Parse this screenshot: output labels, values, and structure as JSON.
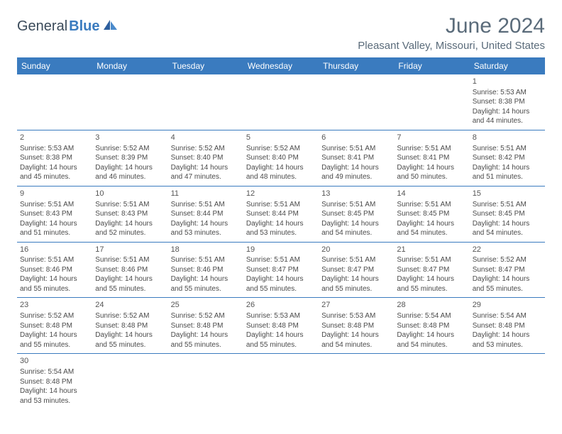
{
  "logo": {
    "part1": "General",
    "part2": "Blue"
  },
  "title": "June 2024",
  "location": "Pleasant Valley, Missouri, United States",
  "colors": {
    "header_bg": "#3a7bbf",
    "header_text": "#ffffff",
    "border": "#3a7bbf",
    "text_muted": "#5a6b7a",
    "cell_text": "#4a4a4a",
    "background": "#ffffff"
  },
  "day_headers": [
    "Sunday",
    "Monday",
    "Tuesday",
    "Wednesday",
    "Thursday",
    "Friday",
    "Saturday"
  ],
  "weeks": [
    [
      null,
      null,
      null,
      null,
      null,
      null,
      {
        "n": "1",
        "sr": "5:53 AM",
        "ss": "8:38 PM",
        "dh": "14",
        "dm": "44"
      }
    ],
    [
      {
        "n": "2",
        "sr": "5:53 AM",
        "ss": "8:38 PM",
        "dh": "14",
        "dm": "45"
      },
      {
        "n": "3",
        "sr": "5:52 AM",
        "ss": "8:39 PM",
        "dh": "14",
        "dm": "46"
      },
      {
        "n": "4",
        "sr": "5:52 AM",
        "ss": "8:40 PM",
        "dh": "14",
        "dm": "47"
      },
      {
        "n": "5",
        "sr": "5:52 AM",
        "ss": "8:40 PM",
        "dh": "14",
        "dm": "48"
      },
      {
        "n": "6",
        "sr": "5:51 AM",
        "ss": "8:41 PM",
        "dh": "14",
        "dm": "49"
      },
      {
        "n": "7",
        "sr": "5:51 AM",
        "ss": "8:41 PM",
        "dh": "14",
        "dm": "50"
      },
      {
        "n": "8",
        "sr": "5:51 AM",
        "ss": "8:42 PM",
        "dh": "14",
        "dm": "51"
      }
    ],
    [
      {
        "n": "9",
        "sr": "5:51 AM",
        "ss": "8:43 PM",
        "dh": "14",
        "dm": "51"
      },
      {
        "n": "10",
        "sr": "5:51 AM",
        "ss": "8:43 PM",
        "dh": "14",
        "dm": "52"
      },
      {
        "n": "11",
        "sr": "5:51 AM",
        "ss": "8:44 PM",
        "dh": "14",
        "dm": "53"
      },
      {
        "n": "12",
        "sr": "5:51 AM",
        "ss": "8:44 PM",
        "dh": "14",
        "dm": "53"
      },
      {
        "n": "13",
        "sr": "5:51 AM",
        "ss": "8:45 PM",
        "dh": "14",
        "dm": "54"
      },
      {
        "n": "14",
        "sr": "5:51 AM",
        "ss": "8:45 PM",
        "dh": "14",
        "dm": "54"
      },
      {
        "n": "15",
        "sr": "5:51 AM",
        "ss": "8:45 PM",
        "dh": "14",
        "dm": "54"
      }
    ],
    [
      {
        "n": "16",
        "sr": "5:51 AM",
        "ss": "8:46 PM",
        "dh": "14",
        "dm": "55"
      },
      {
        "n": "17",
        "sr": "5:51 AM",
        "ss": "8:46 PM",
        "dh": "14",
        "dm": "55"
      },
      {
        "n": "18",
        "sr": "5:51 AM",
        "ss": "8:46 PM",
        "dh": "14",
        "dm": "55"
      },
      {
        "n": "19",
        "sr": "5:51 AM",
        "ss": "8:47 PM",
        "dh": "14",
        "dm": "55"
      },
      {
        "n": "20",
        "sr": "5:51 AM",
        "ss": "8:47 PM",
        "dh": "14",
        "dm": "55"
      },
      {
        "n": "21",
        "sr": "5:51 AM",
        "ss": "8:47 PM",
        "dh": "14",
        "dm": "55"
      },
      {
        "n": "22",
        "sr": "5:52 AM",
        "ss": "8:47 PM",
        "dh": "14",
        "dm": "55"
      }
    ],
    [
      {
        "n": "23",
        "sr": "5:52 AM",
        "ss": "8:48 PM",
        "dh": "14",
        "dm": "55"
      },
      {
        "n": "24",
        "sr": "5:52 AM",
        "ss": "8:48 PM",
        "dh": "14",
        "dm": "55"
      },
      {
        "n": "25",
        "sr": "5:52 AM",
        "ss": "8:48 PM",
        "dh": "14",
        "dm": "55"
      },
      {
        "n": "26",
        "sr": "5:53 AM",
        "ss": "8:48 PM",
        "dh": "14",
        "dm": "55"
      },
      {
        "n": "27",
        "sr": "5:53 AM",
        "ss": "8:48 PM",
        "dh": "14",
        "dm": "54"
      },
      {
        "n": "28",
        "sr": "5:54 AM",
        "ss": "8:48 PM",
        "dh": "14",
        "dm": "54"
      },
      {
        "n": "29",
        "sr": "5:54 AM",
        "ss": "8:48 PM",
        "dh": "14",
        "dm": "53"
      }
    ],
    [
      {
        "n": "30",
        "sr": "5:54 AM",
        "ss": "8:48 PM",
        "dh": "14",
        "dm": "53"
      },
      null,
      null,
      null,
      null,
      null,
      null
    ]
  ],
  "labels": {
    "sunrise": "Sunrise:",
    "sunset": "Sunset:",
    "daylight_prefix": "Daylight:",
    "hours_word": "hours",
    "and_word": "and",
    "minutes_word": "minutes."
  }
}
